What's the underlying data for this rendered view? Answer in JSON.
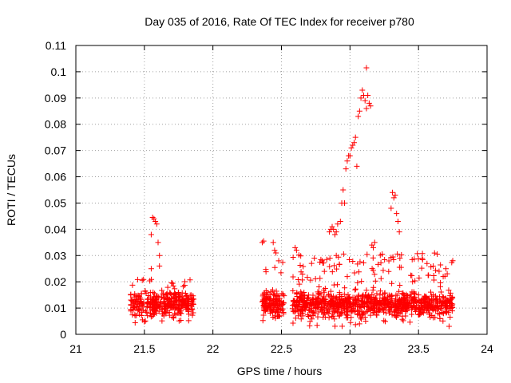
{
  "chart_data": {
    "type": "scatter",
    "title": "Day 035 of 2016, Rate Of TEC Index for receiver p780",
    "xlabel": "GPS time / hours",
    "ylabel": "ROTI / TECUs",
    "xlim": [
      21,
      24
    ],
    "ylim": [
      0,
      0.11
    ],
    "xticks": [
      21,
      21.5,
      22,
      22.5,
      23,
      23.5,
      24
    ],
    "xtick_labels": [
      "21",
      "21.5",
      "22",
      "22.5",
      "23",
      "23.5",
      "24"
    ],
    "yticks": [
      0,
      0.01,
      0.02,
      0.03,
      0.04,
      0.05,
      0.06,
      0.07,
      0.08,
      0.09,
      0.1,
      0.11
    ],
    "ytick_labels": [
      "0",
      "0.01",
      "0.02",
      "0.03",
      "0.04",
      "0.05",
      "0.06",
      "0.07",
      "0.08",
      "0.09",
      "0.1",
      "0.11"
    ],
    "grid": true,
    "marker": "+",
    "color": "#ff0000",
    "clusters": [
      {
        "x_start": 21.4,
        "x_end": 21.86,
        "y_min": 0.004,
        "y_max": 0.021,
        "count": 360
      },
      {
        "x_start": 22.36,
        "x_end": 22.52,
        "y_min": 0.005,
        "y_max": 0.029,
        "count": 150
      },
      {
        "x_start": 22.58,
        "x_end": 23.75,
        "y_min": 0.003,
        "y_max": 0.031,
        "count": 1000
      }
    ],
    "highlight_points": [
      {
        "x": 21.55,
        "y": 0.038
      },
      {
        "x": 21.56,
        "y": 0.0445
      },
      {
        "x": 21.57,
        "y": 0.044
      },
      {
        "x": 21.58,
        "y": 0.043
      },
      {
        "x": 21.59,
        "y": 0.042
      },
      {
        "x": 21.6,
        "y": 0.035
      },
      {
        "x": 21.61,
        "y": 0.03
      },
      {
        "x": 21.61,
        "y": 0.026
      },
      {
        "x": 21.55,
        "y": 0.025
      },
      {
        "x": 22.36,
        "y": 0.035
      },
      {
        "x": 22.37,
        "y": 0.0355
      },
      {
        "x": 22.44,
        "y": 0.035
      },
      {
        "x": 22.45,
        "y": 0.032
      },
      {
        "x": 22.46,
        "y": 0.031
      },
      {
        "x": 22.6,
        "y": 0.033
      },
      {
        "x": 22.61,
        "y": 0.032
      },
      {
        "x": 22.85,
        "y": 0.039
      },
      {
        "x": 22.86,
        "y": 0.04
      },
      {
        "x": 22.87,
        "y": 0.041
      },
      {
        "x": 22.88,
        "y": 0.04
      },
      {
        "x": 22.89,
        "y": 0.038
      },
      {
        "x": 22.9,
        "y": 0.039
      },
      {
        "x": 22.91,
        "y": 0.042
      },
      {
        "x": 22.93,
        "y": 0.043
      },
      {
        "x": 22.94,
        "y": 0.05
      },
      {
        "x": 22.95,
        "y": 0.055
      },
      {
        "x": 22.96,
        "y": 0.05
      },
      {
        "x": 22.97,
        "y": 0.063
      },
      {
        "x": 22.98,
        "y": 0.066
      },
      {
        "x": 22.99,
        "y": 0.068
      },
      {
        "x": 23.0,
        "y": 0.068
      },
      {
        "x": 23.01,
        "y": 0.071
      },
      {
        "x": 23.02,
        "y": 0.072
      },
      {
        "x": 23.03,
        "y": 0.073
      },
      {
        "x": 23.04,
        "y": 0.075
      },
      {
        "x": 23.05,
        "y": 0.064
      },
      {
        "x": 23.06,
        "y": 0.083
      },
      {
        "x": 23.07,
        "y": 0.085
      },
      {
        "x": 23.08,
        "y": 0.09
      },
      {
        "x": 23.09,
        "y": 0.093
      },
      {
        "x": 23.1,
        "y": 0.091
      },
      {
        "x": 23.11,
        "y": 0.089
      },
      {
        "x": 23.12,
        "y": 0.1015
      },
      {
        "x": 23.13,
        "y": 0.091
      },
      {
        "x": 23.14,
        "y": 0.088
      },
      {
        "x": 23.12,
        "y": 0.086
      },
      {
        "x": 23.15,
        "y": 0.087
      },
      {
        "x": 23.16,
        "y": 0.034
      },
      {
        "x": 23.17,
        "y": 0.033
      },
      {
        "x": 23.18,
        "y": 0.035
      },
      {
        "x": 23.3,
        "y": 0.048
      },
      {
        "x": 23.31,
        "y": 0.054
      },
      {
        "x": 23.32,
        "y": 0.052
      },
      {
        "x": 23.33,
        "y": 0.053
      },
      {
        "x": 23.34,
        "y": 0.046
      },
      {
        "x": 23.35,
        "y": 0.043
      },
      {
        "x": 23.36,
        "y": 0.039
      },
      {
        "x": 22.72,
        "y": 0.027
      },
      {
        "x": 22.74,
        "y": 0.029
      },
      {
        "x": 23.65,
        "y": 0.024
      },
      {
        "x": 23.7,
        "y": 0.025
      },
      {
        "x": 23.68,
        "y": 0.022
      },
      {
        "x": 22.48,
        "y": 0.028
      },
      {
        "x": 22.9,
        "y": 0.03
      }
    ]
  }
}
